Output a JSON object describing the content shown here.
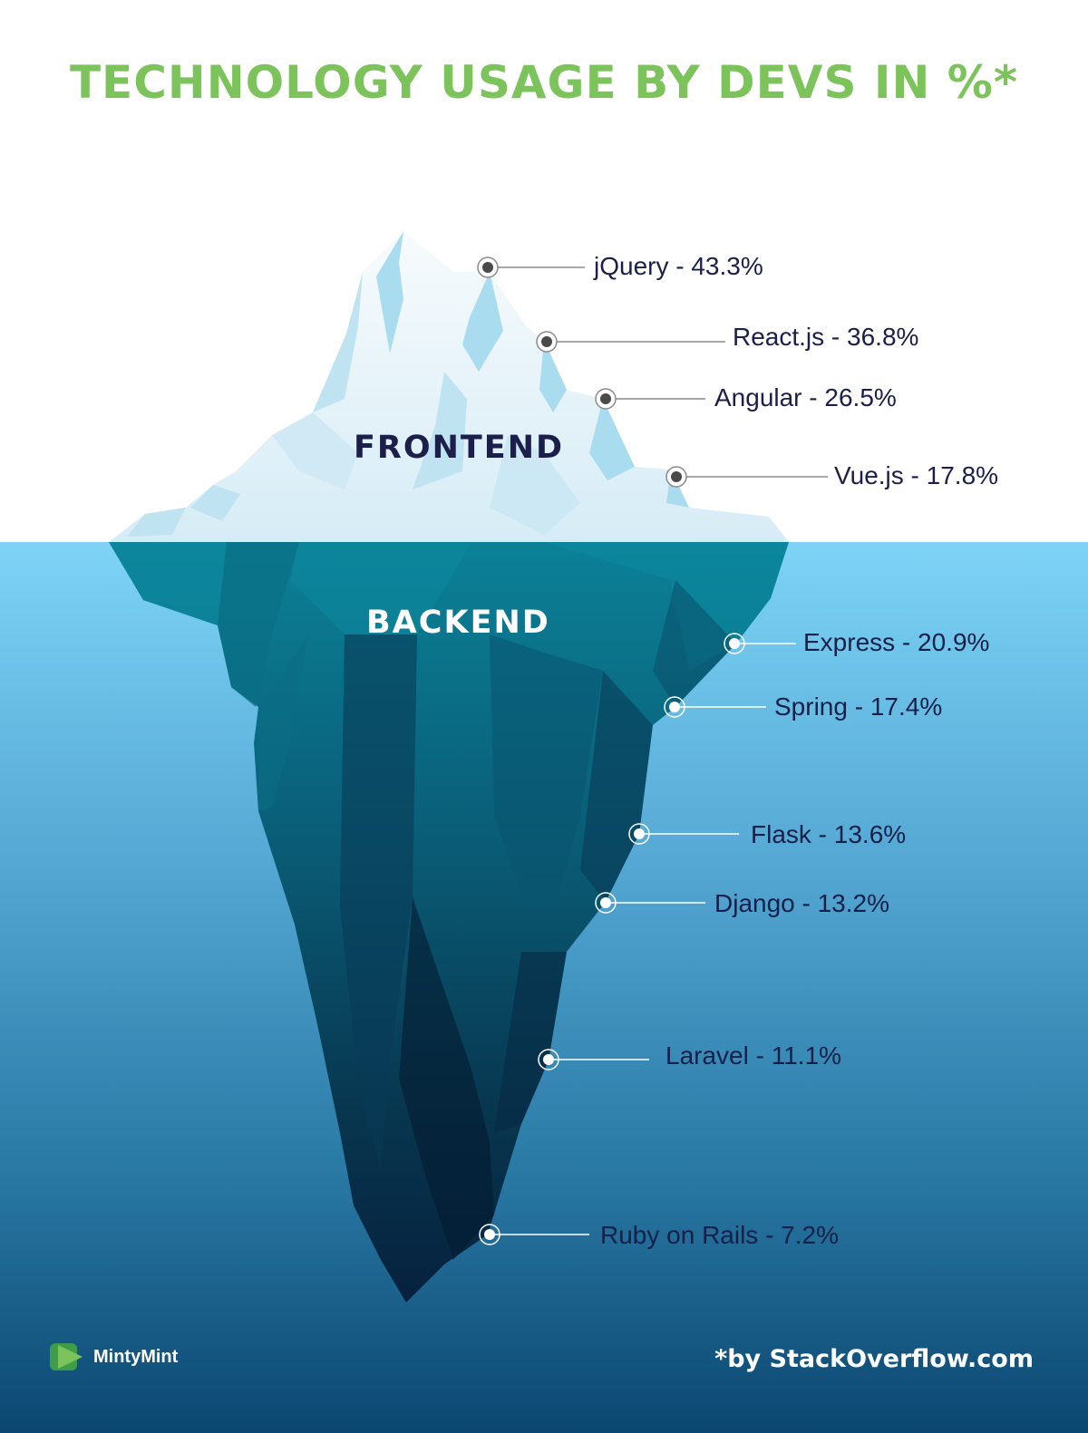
{
  "title": "TECHNOLOGY USAGE BY DEVS IN %*",
  "sections": {
    "frontend": "FRONTEND",
    "backend": "BACKEND"
  },
  "frontend_items": [
    {
      "label": "jQuery - 43.3%"
    },
    {
      "label": "React.js - 36.8%"
    },
    {
      "label": "Angular - 26.5%"
    },
    {
      "label": "Vue.js - 17.8%"
    }
  ],
  "backend_items": [
    {
      "label": "Express - 20.9%"
    },
    {
      "label": "Spring - 17.4%"
    },
    {
      "label": "Flask - 13.6%"
    },
    {
      "label": "Django - 13.2%"
    },
    {
      "label": "Laravel - 11.1%"
    },
    {
      "label": "Ruby on Rails - 7.2%"
    }
  ],
  "brand": {
    "name": "MintyMint",
    "icon": "play-logo-icon"
  },
  "source": "*by StackOverflow.com",
  "colors": {
    "title": "#7dc35b",
    "text": "#1b1f4a",
    "water_top": "#7ed3f7",
    "water_bottom": "#0b4770",
    "ice_light": "#eef6fb",
    "ice_shadow": "#a9dcee",
    "berg_top": "#0b8197",
    "berg_deep": "#06213d"
  }
}
